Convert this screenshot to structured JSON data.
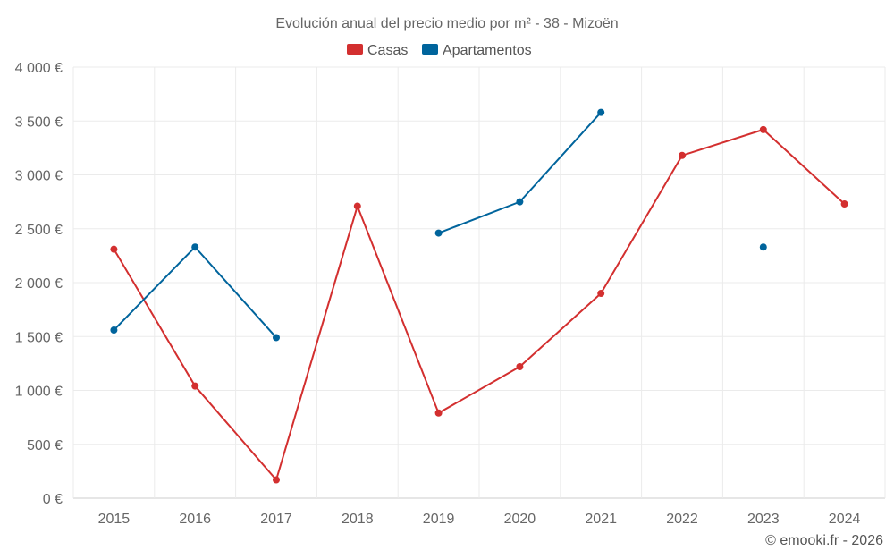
{
  "chart_data": {
    "type": "line",
    "title": "Evolución anual del precio medio por m² - 38 - Mizoën",
    "categories": [
      "2015",
      "2016",
      "2017",
      "2018",
      "2019",
      "2020",
      "2021",
      "2022",
      "2023",
      "2024"
    ],
    "ylim": [
      0,
      4000
    ],
    "yticks": [
      0,
      500,
      1000,
      1500,
      2000,
      2500,
      3000,
      3500,
      4000
    ],
    "ytick_labels": [
      "0 €",
      "500 €",
      "1 000 €",
      "1 500 €",
      "2 000 €",
      "2 500 €",
      "3 000 €",
      "3 500 €",
      "4 000 €"
    ],
    "grid": true,
    "legend_position": "top-center",
    "series": [
      {
        "name": "Casas",
        "color": "#d32f2f",
        "values": [
          2310,
          1040,
          170,
          2710,
          790,
          1220,
          1900,
          3180,
          3420,
          2730
        ]
      },
      {
        "name": "Apartamentos",
        "color": "#00649c",
        "values": [
          1560,
          2330,
          1490,
          null,
          2460,
          2750,
          3580,
          null,
          2330,
          null
        ]
      }
    ]
  },
  "credit": "© emooki.fr - 2026"
}
